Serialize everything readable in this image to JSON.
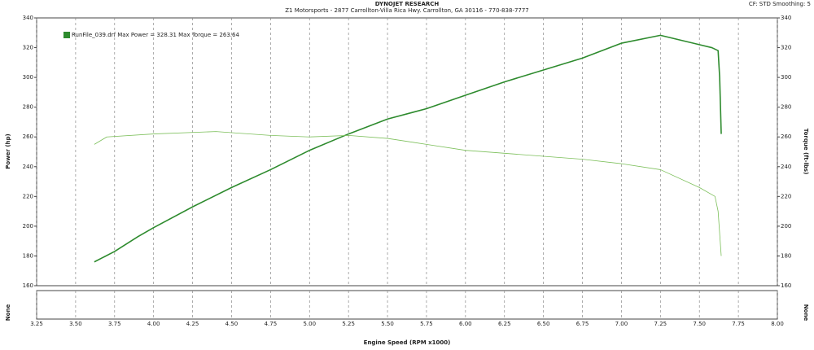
{
  "chart_data": {
    "type": "line",
    "title": "DYNOJET RESEARCH",
    "subtitle": "Z1 Motorsports - 2877 Carrollton-Villa Rica Hwy. Carrollton, GA 30116 - 770-838-7777",
    "corner_note": "CF: STD   Smoothing: 5",
    "legend": "RunFile_039.drf Max Power = 328.31    Max Torque = 263.64",
    "legend_color": "#2e8b2e",
    "xlabel": "Engine Speed (RPM x1000)",
    "ylabel": "Power (hp)",
    "y2label": "Torque (ft-lbs)",
    "lower_panel_left": "None",
    "lower_panel_right": "None",
    "xlim": [
      3.25,
      8.0
    ],
    "xticks": [
      3.25,
      {
        "value": 3.5,
        "label": "3.50"
      },
      3.75,
      {
        "value": 4.0,
        "label": "4.00"
      },
      4.25,
      {
        "value": 4.5,
        "label": "4.50"
      },
      4.75,
      {
        "value": 5.0,
        "label": "5.00"
      },
      5.25,
      {
        "value": 5.5,
        "label": "5.50"
      },
      5.75,
      {
        "value": 6.0,
        "label": "6.00"
      },
      6.25,
      {
        "value": 6.5,
        "label": "6.50"
      },
      6.75,
      {
        "value": 7.0,
        "label": "7.00"
      },
      7.25,
      {
        "value": 7.5,
        "label": "7.50"
      },
      7.75,
      {
        "value": 8.0,
        "label": "8.00"
      }
    ],
    "ylim": [
      160,
      340
    ],
    "yticks": [
      160,
      180,
      200,
      220,
      240,
      260,
      280,
      300,
      320,
      340
    ],
    "y2lim": [
      160,
      340
    ],
    "y2ticks": [
      160,
      180,
      200,
      220,
      240,
      260,
      280,
      300,
      320,
      340
    ],
    "xgrid": true,
    "series": [
      {
        "color": "#2e8b2e",
        "width": 1.6,
        "x": [
          3.62,
          3.75,
          3.9,
          4.0,
          4.25,
          4.5,
          4.75,
          5.0,
          5.25,
          5.5,
          5.75,
          6.0,
          6.25,
          6.5,
          6.75,
          7.0,
          7.25,
          7.5,
          7.58,
          7.62,
          7.63,
          7.64
        ],
        "values": [
          176,
          183,
          193,
          199,
          213,
          226,
          238,
          251,
          262,
          272,
          279,
          288,
          297,
          305,
          313,
          323,
          328.3,
          322,
          320,
          318,
          300,
          262
        ]
      },
      {
        "color": "#7cbf5a",
        "width": 0.8,
        "axis": "y2",
        "x": [
          3.62,
          3.7,
          4.0,
          4.4,
          4.75,
          5.0,
          5.25,
          5.5,
          5.75,
          6.0,
          6.25,
          6.5,
          6.75,
          7.0,
          7.25,
          7.5,
          7.6,
          7.62,
          7.64
        ],
        "values": [
          255,
          260,
          262,
          263.6,
          261,
          260,
          261,
          259,
          255,
          251,
          249,
          247,
          245,
          242,
          238,
          226,
          220,
          210,
          180
        ]
      }
    ]
  }
}
